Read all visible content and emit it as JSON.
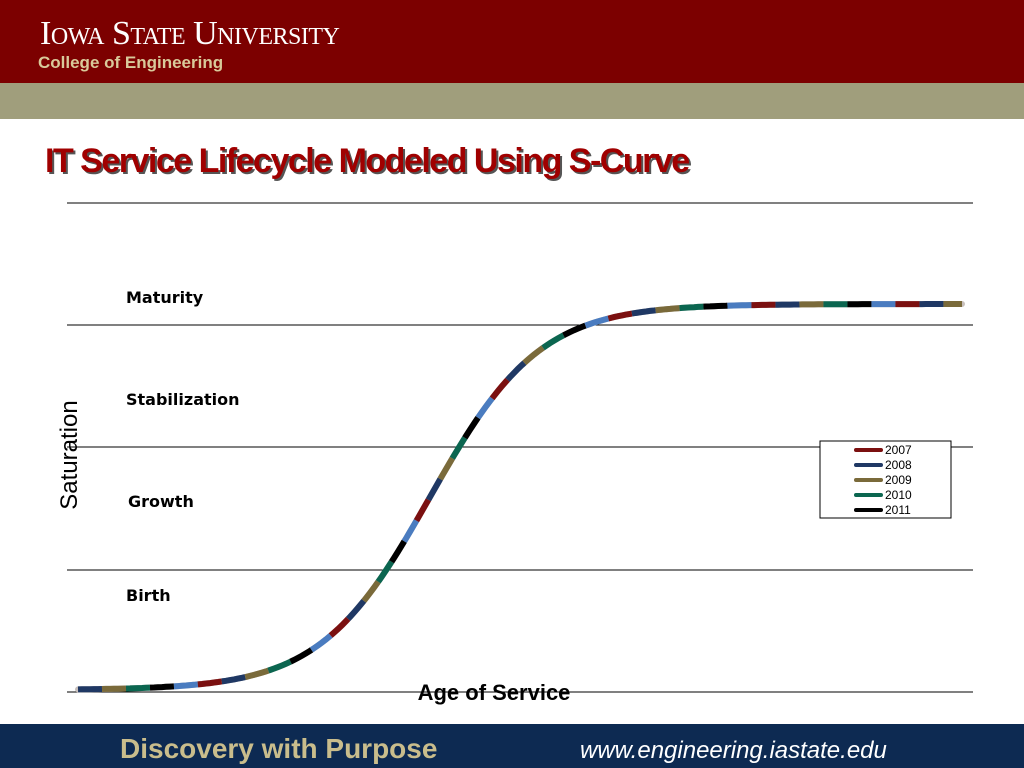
{
  "header": {
    "university": "Iowa State University",
    "college": "College of Engineering"
  },
  "title": "IT Service Lifecycle Modeled Using S-Curve",
  "stages": [
    "Maturity",
    "Stabilization",
    "Growth",
    "Birth"
  ],
  "axes": {
    "y": "Saturation",
    "x": "Age of Service"
  },
  "legend": [
    "2007",
    "2008",
    "2009",
    "2010",
    "2011"
  ],
  "footer": {
    "slogan": "Discovery with Purpose",
    "url": "www.engineering.iastate.edu"
  }
}
